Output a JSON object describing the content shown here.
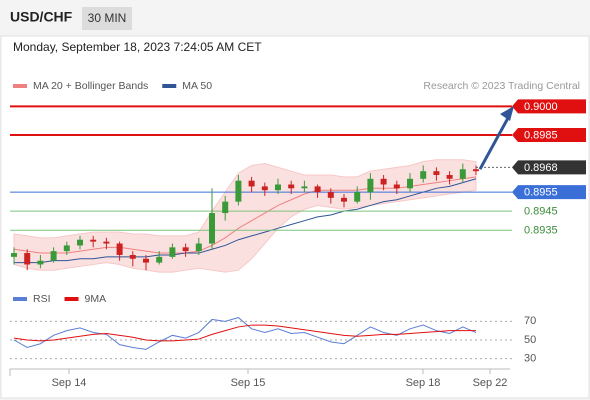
{
  "chart_data": {
    "type": "candlestick",
    "title": "USD/CHF",
    "timeframe": "30 MIN",
    "subtitle": "Monday, September 18, 2023 7:24:05 AM CET",
    "credit": "Research © 2023 Trading Central",
    "legend": [
      {
        "name": "MA 20 + Bollinger Bands",
        "color": "#f08080"
      },
      {
        "name": "MA 50",
        "color": "#2f5597"
      }
    ],
    "ylim": [
      0.8912,
      0.9006
    ],
    "x_labels": [
      "Sep 14",
      "Sep 15",
      "Sep 18",
      "Sep 22"
    ],
    "up_color": "#3a9a3a",
    "down_color": "#cc2222",
    "candles": [
      {
        "o": 0.8921,
        "h": 0.8926,
        "l": 0.8917,
        "c": 0.8923
      },
      {
        "o": 0.8923,
        "h": 0.8925,
        "l": 0.8914,
        "c": 0.8917
      },
      {
        "o": 0.8917,
        "h": 0.8922,
        "l": 0.8915,
        "c": 0.8919
      },
      {
        "o": 0.8919,
        "h": 0.8926,
        "l": 0.8918,
        "c": 0.8924
      },
      {
        "o": 0.8924,
        "h": 0.8929,
        "l": 0.8922,
        "c": 0.8927
      },
      {
        "o": 0.8927,
        "h": 0.8932,
        "l": 0.8925,
        "c": 0.893
      },
      {
        "o": 0.893,
        "h": 0.8932,
        "l": 0.8926,
        "c": 0.8929
      },
      {
        "o": 0.8929,
        "h": 0.8931,
        "l": 0.8925,
        "c": 0.8928
      },
      {
        "o": 0.8928,
        "h": 0.8929,
        "l": 0.8919,
        "c": 0.8922
      },
      {
        "o": 0.8922,
        "h": 0.8924,
        "l": 0.8916,
        "c": 0.892
      },
      {
        "o": 0.892,
        "h": 0.8922,
        "l": 0.8914,
        "c": 0.8918
      },
      {
        "o": 0.8918,
        "h": 0.8924,
        "l": 0.8917,
        "c": 0.8921
      },
      {
        "o": 0.8921,
        "h": 0.8928,
        "l": 0.892,
        "c": 0.8926
      },
      {
        "o": 0.8926,
        "h": 0.8928,
        "l": 0.8921,
        "c": 0.8924
      },
      {
        "o": 0.8924,
        "h": 0.8931,
        "l": 0.8922,
        "c": 0.8928
      },
      {
        "o": 0.8928,
        "h": 0.8957,
        "l": 0.8925,
        "c": 0.8944
      },
      {
        "o": 0.8944,
        "h": 0.8953,
        "l": 0.894,
        "c": 0.895
      },
      {
        "o": 0.895,
        "h": 0.8964,
        "l": 0.8948,
        "c": 0.8961
      },
      {
        "o": 0.8961,
        "h": 0.8963,
        "l": 0.8955,
        "c": 0.8958
      },
      {
        "o": 0.8958,
        "h": 0.896,
        "l": 0.8953,
        "c": 0.8956
      },
      {
        "o": 0.8956,
        "h": 0.8962,
        "l": 0.8954,
        "c": 0.8959
      },
      {
        "o": 0.8959,
        "h": 0.8961,
        "l": 0.8954,
        "c": 0.8957
      },
      {
        "o": 0.8957,
        "h": 0.8961,
        "l": 0.8955,
        "c": 0.8958
      },
      {
        "o": 0.8958,
        "h": 0.8959,
        "l": 0.8952,
        "c": 0.8955
      },
      {
        "o": 0.8955,
        "h": 0.8957,
        "l": 0.8949,
        "c": 0.8952
      },
      {
        "o": 0.8952,
        "h": 0.8954,
        "l": 0.8947,
        "c": 0.895
      },
      {
        "o": 0.895,
        "h": 0.8958,
        "l": 0.8949,
        "c": 0.8955
      },
      {
        "o": 0.8955,
        "h": 0.8965,
        "l": 0.8951,
        "c": 0.8962
      },
      {
        "o": 0.8962,
        "h": 0.8964,
        "l": 0.8956,
        "c": 0.8959
      },
      {
        "o": 0.8959,
        "h": 0.8961,
        "l": 0.8954,
        "c": 0.8957
      },
      {
        "o": 0.8957,
        "h": 0.8965,
        "l": 0.8955,
        "c": 0.8962
      },
      {
        "o": 0.8962,
        "h": 0.8969,
        "l": 0.896,
        "c": 0.8966
      },
      {
        "o": 0.8966,
        "h": 0.8968,
        "l": 0.8961,
        "c": 0.8964
      },
      {
        "o": 0.8964,
        "h": 0.8966,
        "l": 0.8959,
        "c": 0.8962
      },
      {
        "o": 0.8962,
        "h": 0.897,
        "l": 0.896,
        "c": 0.8967
      },
      {
        "o": 0.8967,
        "h": 0.8969,
        "l": 0.8964,
        "c": 0.8966
      }
    ],
    "ma20": [
      0.8925,
      0.8924,
      0.8923,
      0.8923,
      0.8923,
      0.8924,
      0.8925,
      0.8926,
      0.8926,
      0.8925,
      0.8924,
      0.8923,
      0.8923,
      0.8923,
      0.8924,
      0.8927,
      0.8931,
      0.8936,
      0.894,
      0.8944,
      0.8948,
      0.8951,
      0.8954,
      0.8956,
      0.8956,
      0.8956,
      0.8956,
      0.8957,
      0.8957,
      0.8957,
      0.8958,
      0.8959,
      0.896,
      0.8961,
      0.8962,
      0.8963
    ],
    "bb_upper": [
      0.8933,
      0.8932,
      0.8931,
      0.8931,
      0.8932,
      0.8933,
      0.8934,
      0.8934,
      0.8934,
      0.8933,
      0.8933,
      0.8932,
      0.8932,
      0.8932,
      0.8934,
      0.8945,
      0.8955,
      0.8965,
      0.8969,
      0.897,
      0.8968,
      0.8966,
      0.8964,
      0.8964,
      0.8964,
      0.8963,
      0.8963,
      0.8966,
      0.8967,
      0.8968,
      0.8969,
      0.8971,
      0.8972,
      0.8972,
      0.8972,
      0.8971
    ],
    "bb_lower": [
      0.8917,
      0.8915,
      0.8914,
      0.8914,
      0.8915,
      0.8916,
      0.8917,
      0.8918,
      0.8917,
      0.8915,
      0.8914,
      0.8913,
      0.8913,
      0.8914,
      0.8915,
      0.8914,
      0.8913,
      0.8914,
      0.892,
      0.8928,
      0.8936,
      0.8942,
      0.8946,
      0.8948,
      0.8947,
      0.8946,
      0.8947,
      0.8948,
      0.8949,
      0.895,
      0.8951,
      0.8952,
      0.8953,
      0.8954,
      0.8955,
      0.8956
    ],
    "ma50": [
      0.8918,
      0.8918,
      0.8918,
      0.8919,
      0.8919,
      0.892,
      0.892,
      0.8921,
      0.8921,
      0.8921,
      0.8921,
      0.8922,
      0.8922,
      0.8923,
      0.8923,
      0.8925,
      0.8927,
      0.893,
      0.8932,
      0.8934,
      0.8936,
      0.8938,
      0.894,
      0.8942,
      0.8943,
      0.8945,
      0.8946,
      0.8948,
      0.895,
      0.8951,
      0.8953,
      0.8955,
      0.8957,
      0.8958,
      0.896,
      0.8962
    ],
    "levels": [
      {
        "value": 0.9,
        "label": "0.9000",
        "color": "#e01010",
        "line": "solid",
        "box": true
      },
      {
        "value": 0.8985,
        "label": "0.8985",
        "color": "#e01010",
        "line": "solid",
        "box": true
      },
      {
        "value": 0.8968,
        "label": "0.8968",
        "color": "#333333",
        "line": "dotted",
        "box": true
      },
      {
        "value": 0.8955,
        "label": "0.8955",
        "color": "#3b6fd8",
        "line": "solid",
        "box": true
      },
      {
        "value": 0.8945,
        "label": "0.8945",
        "color": "#7cc47c",
        "line": "solid",
        "box": false
      },
      {
        "value": 0.8935,
        "label": "0.8935",
        "color": "#7cc47c",
        "line": "solid",
        "box": false
      }
    ],
    "rsi": {
      "legend": [
        {
          "name": "RSI",
          "color": "#5b7fd6"
        },
        {
          "name": "9MA",
          "color": "#e01010"
        }
      ],
      "ylim": [
        20,
        80
      ],
      "yticks": [
        30,
        50,
        70
      ],
      "values": [
        50,
        42,
        46,
        55,
        60,
        63,
        58,
        56,
        45,
        42,
        40,
        48,
        55,
        52,
        58,
        72,
        70,
        74,
        62,
        58,
        62,
        57,
        58,
        53,
        48,
        46,
        55,
        64,
        58,
        55,
        62,
        66,
        60,
        57,
        64,
        58
      ],
      "ma9": [
        52,
        50,
        49,
        50,
        52,
        54,
        56,
        57,
        55,
        53,
        50,
        49,
        49,
        50,
        51,
        56,
        60,
        64,
        66,
        66,
        65,
        63,
        61,
        59,
        57,
        55,
        54,
        55,
        56,
        56,
        57,
        58,
        59,
        60,
        60,
        60
      ]
    }
  }
}
